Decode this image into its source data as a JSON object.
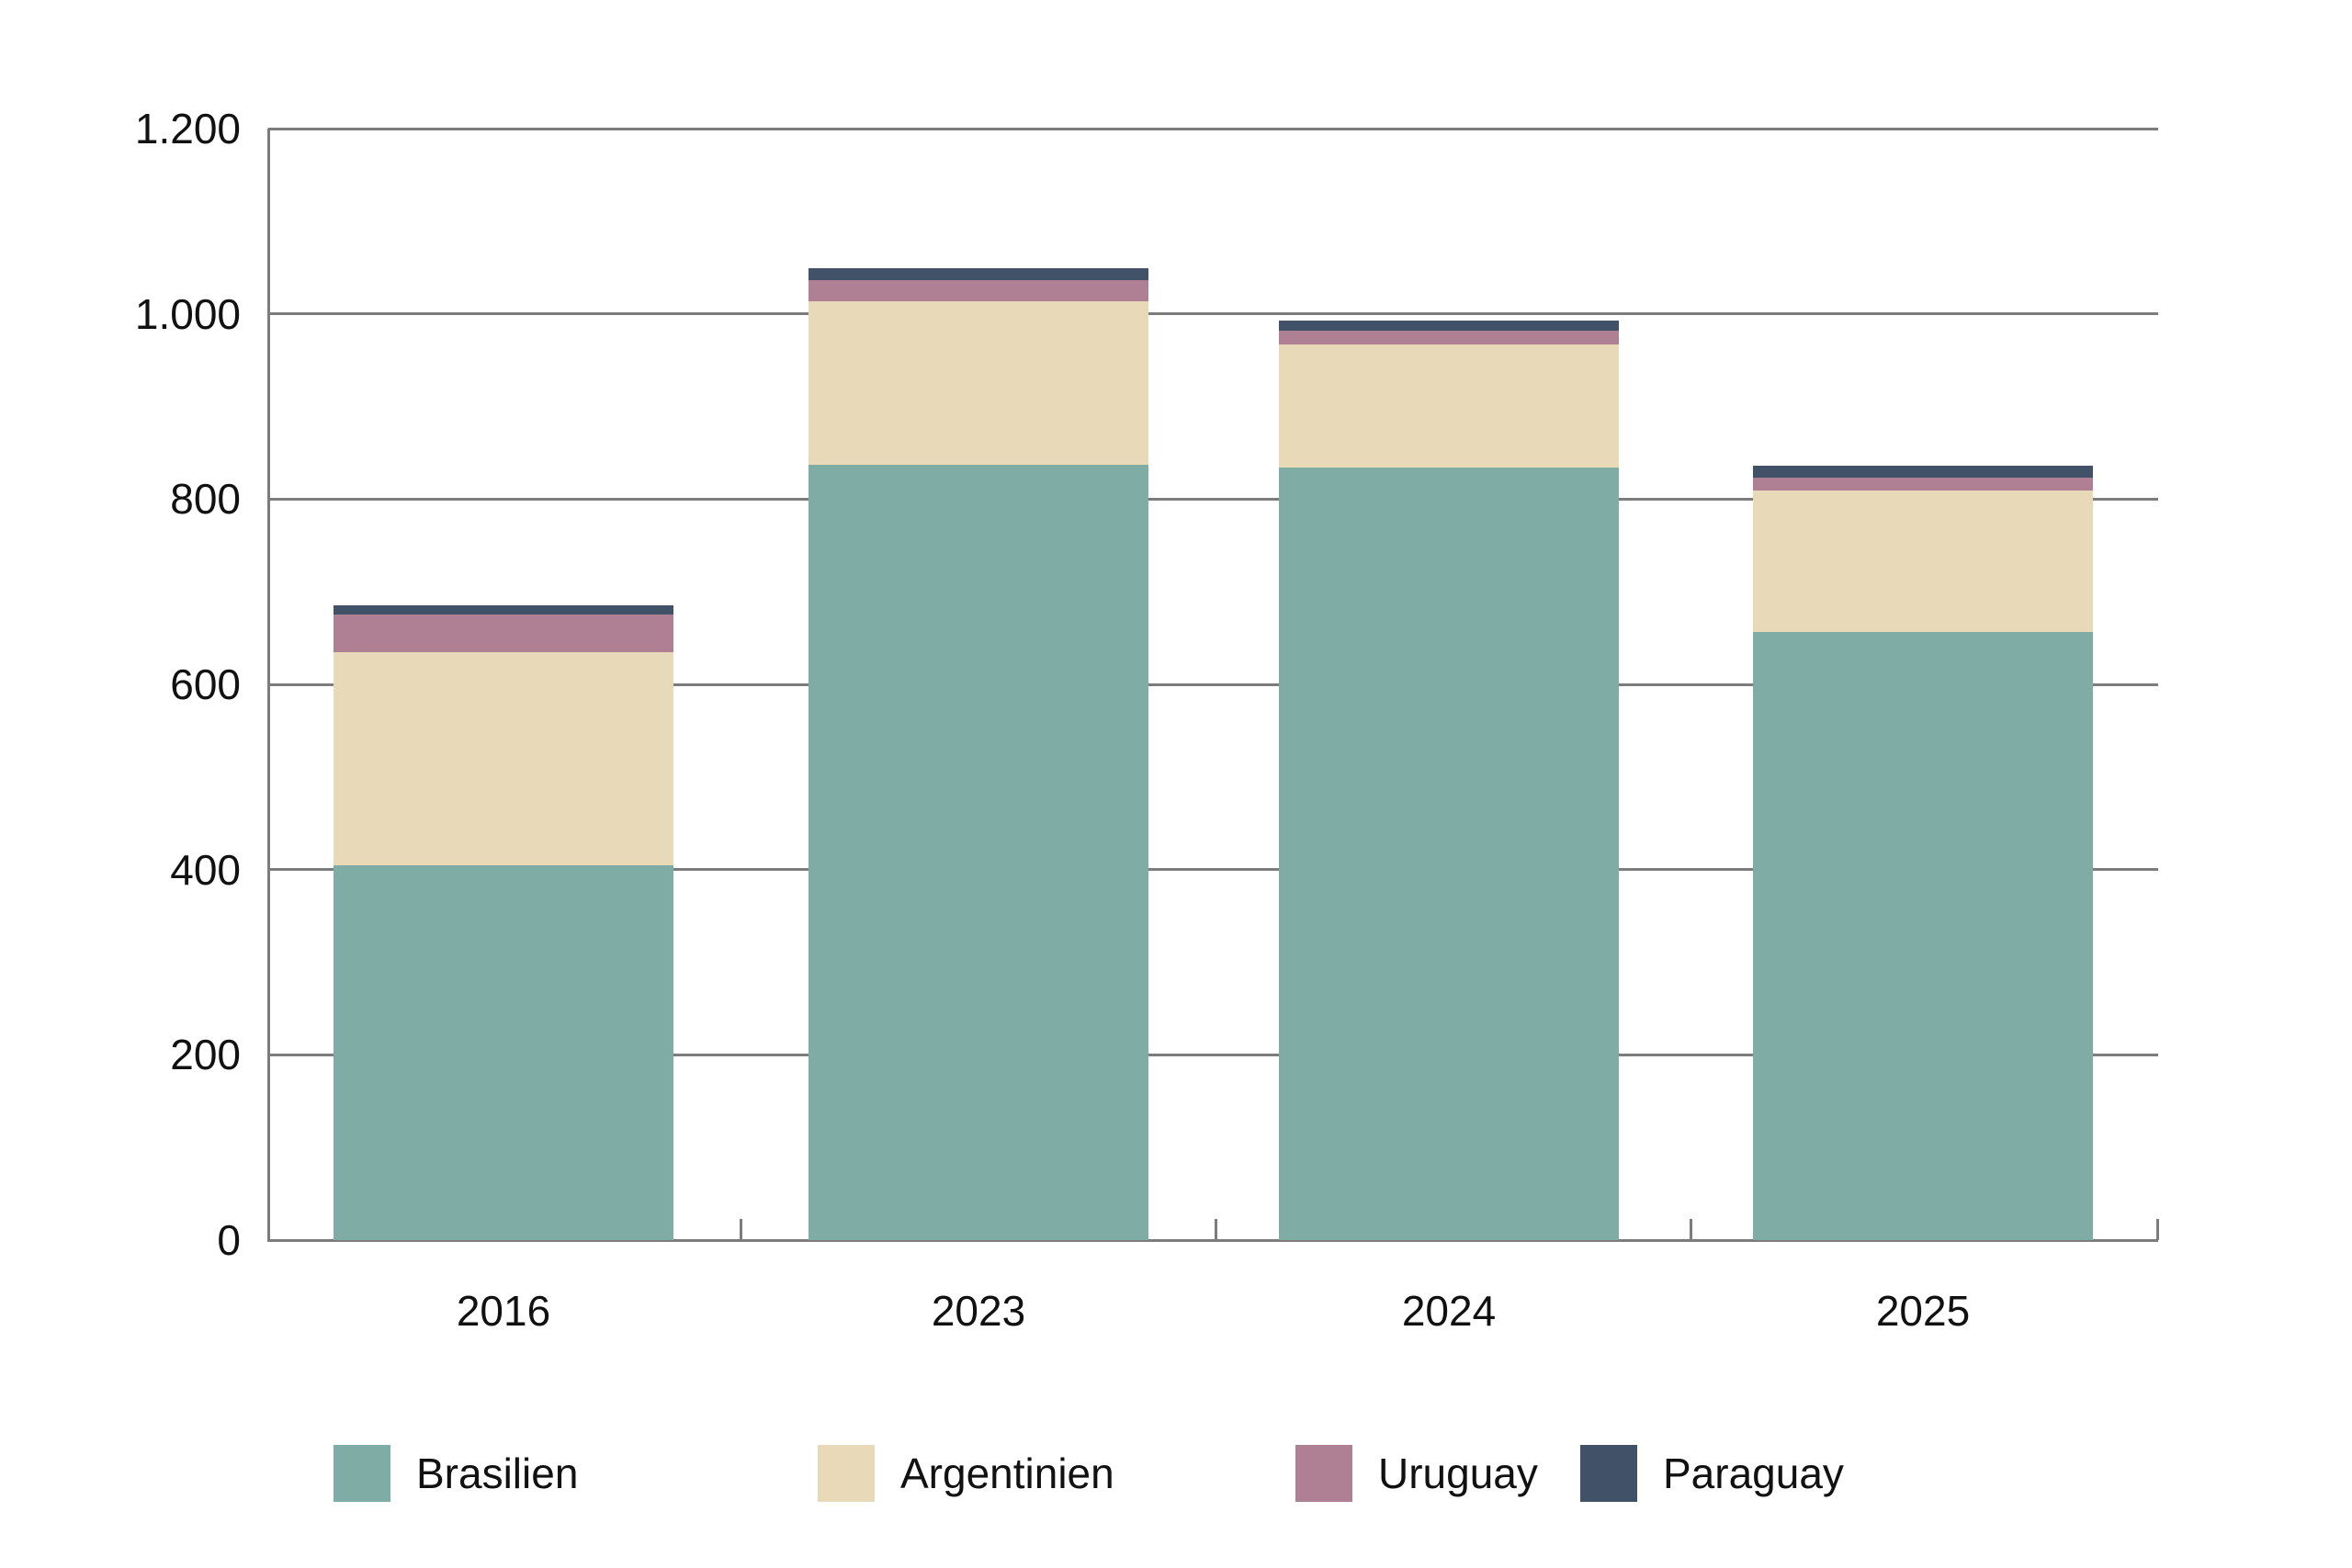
{
  "chart_data": {
    "type": "bar",
    "stacked": true,
    "title": "",
    "xlabel": "",
    "ylabel": "",
    "categories": [
      "2016",
      "2023",
      "2024",
      "2025"
    ],
    "series": [
      {
        "name": "Brasilien",
        "color": "#7FADA6",
        "values": [
          405,
          837,
          834,
          657
        ]
      },
      {
        "name": "Argentinien",
        "color": "#E8DAB8",
        "values": [
          230,
          177,
          133,
          152
        ]
      },
      {
        "name": "Uruguay",
        "color": "#AF8094",
        "values": [
          40,
          22,
          15,
          14
        ]
      },
      {
        "name": "Paraguay",
        "color": "#415268",
        "values": [
          10,
          13,
          11,
          13
        ]
      }
    ],
    "totals": [
      685,
      1049,
      993,
      836
    ],
    "ylim": [
      0,
      1200
    ],
    "ytick_step": 200,
    "ytick_labels": [
      "0",
      "200",
      "400",
      "600",
      "800",
      "1.000",
      "1.200"
    ],
    "grid": true,
    "gridline_color": "#7c7c7c",
    "background_color": "#ffffff",
    "text_color": "#111111",
    "legend_position": "bottom",
    "legend_items": [
      "Brasilien",
      "Argentinien",
      "Uruguay",
      "Paraguay"
    ]
  }
}
